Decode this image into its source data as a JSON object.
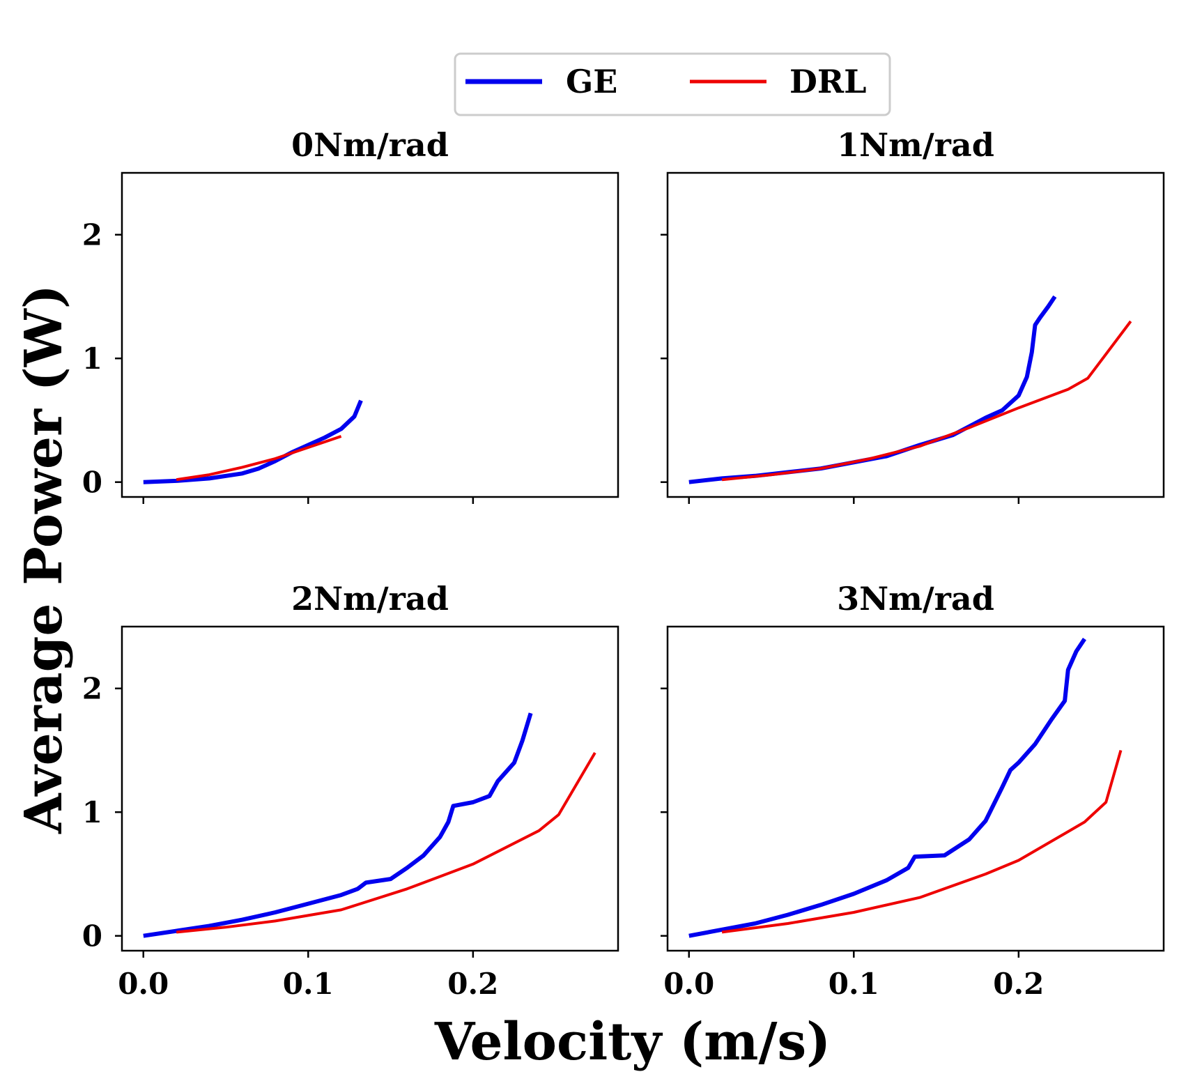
{
  "legend": {
    "entries": [
      {
        "label": "GE",
        "color": "#0000ee"
      },
      {
        "label": "DRL",
        "color": "#ee0000"
      }
    ]
  },
  "axes": {
    "xlabel": "Velocity (m/s)",
    "ylabel": "Average Power (W)",
    "xlim": [
      -0.013,
      0.288
    ],
    "ylim": [
      -0.12,
      2.5
    ],
    "xticks": [
      0.0,
      0.1,
      0.2
    ],
    "xtick_labels": [
      "0.0",
      "0.1",
      "0.2"
    ],
    "yticks": [
      0,
      1,
      2
    ],
    "ytick_labels": [
      "0",
      "1",
      "2"
    ]
  },
  "chart_data": [
    {
      "type": "line",
      "title": "0Nm/rad",
      "series": [
        {
          "name": "GE",
          "x": [
            0.0,
            0.02,
            0.04,
            0.06,
            0.07,
            0.08,
            0.09,
            0.1,
            0.11,
            0.12,
            0.128,
            0.132
          ],
          "y": [
            0.0,
            0.01,
            0.03,
            0.07,
            0.11,
            0.17,
            0.24,
            0.3,
            0.36,
            0.43,
            0.53,
            0.66
          ]
        },
        {
          "name": "DRL",
          "x": [
            0.02,
            0.04,
            0.06,
            0.08,
            0.1,
            0.12
          ],
          "y": [
            0.02,
            0.06,
            0.12,
            0.19,
            0.28,
            0.37
          ]
        }
      ]
    },
    {
      "type": "line",
      "title": "1Nm/rad",
      "series": [
        {
          "name": "GE",
          "x": [
            0.0,
            0.02,
            0.04,
            0.06,
            0.08,
            0.1,
            0.12,
            0.14,
            0.16,
            0.18,
            0.19,
            0.2,
            0.205,
            0.208,
            0.21,
            0.213,
            0.218,
            0.222
          ],
          "y": [
            0.0,
            0.03,
            0.05,
            0.08,
            0.11,
            0.16,
            0.21,
            0.3,
            0.38,
            0.52,
            0.58,
            0.7,
            0.85,
            1.05,
            1.27,
            1.33,
            1.42,
            1.5
          ]
        },
        {
          "name": "DRL",
          "x": [
            0.02,
            0.05,
            0.08,
            0.11,
            0.14,
            0.17,
            0.2,
            0.23,
            0.242,
            0.268
          ],
          "y": [
            0.02,
            0.06,
            0.11,
            0.19,
            0.29,
            0.44,
            0.6,
            0.75,
            0.84,
            1.3
          ]
        }
      ]
    },
    {
      "type": "line",
      "title": "2Nm/rad",
      "series": [
        {
          "name": "GE",
          "x": [
            0.0,
            0.02,
            0.04,
            0.06,
            0.08,
            0.1,
            0.12,
            0.13,
            0.135,
            0.15,
            0.16,
            0.17,
            0.18,
            0.185,
            0.188,
            0.2,
            0.21,
            0.215,
            0.225,
            0.23,
            0.235
          ],
          "y": [
            0.0,
            0.04,
            0.08,
            0.13,
            0.19,
            0.26,
            0.33,
            0.38,
            0.43,
            0.46,
            0.55,
            0.65,
            0.8,
            0.92,
            1.05,
            1.08,
            1.13,
            1.25,
            1.4,
            1.58,
            1.8
          ]
        },
        {
          "name": "DRL",
          "x": [
            0.02,
            0.05,
            0.08,
            0.12,
            0.16,
            0.2,
            0.24,
            0.252,
            0.274
          ],
          "y": [
            0.03,
            0.07,
            0.12,
            0.21,
            0.38,
            0.58,
            0.85,
            0.98,
            1.48
          ]
        }
      ]
    },
    {
      "type": "line",
      "title": "3Nm/rad",
      "series": [
        {
          "name": "GE",
          "x": [
            0.0,
            0.02,
            0.04,
            0.06,
            0.08,
            0.1,
            0.12,
            0.133,
            0.137,
            0.155,
            0.17,
            0.18,
            0.19,
            0.195,
            0.2,
            0.21,
            0.22,
            0.228,
            0.23,
            0.235,
            0.24
          ],
          "y": [
            0.0,
            0.05,
            0.1,
            0.17,
            0.25,
            0.34,
            0.45,
            0.55,
            0.64,
            0.65,
            0.78,
            0.93,
            1.2,
            1.34,
            1.4,
            1.55,
            1.75,
            1.9,
            2.15,
            2.3,
            2.4
          ]
        },
        {
          "name": "DRL",
          "x": [
            0.02,
            0.06,
            0.1,
            0.14,
            0.18,
            0.2,
            0.24,
            0.253,
            0.262
          ],
          "y": [
            0.03,
            0.1,
            0.19,
            0.31,
            0.5,
            0.61,
            0.92,
            1.08,
            1.5
          ]
        }
      ]
    }
  ]
}
